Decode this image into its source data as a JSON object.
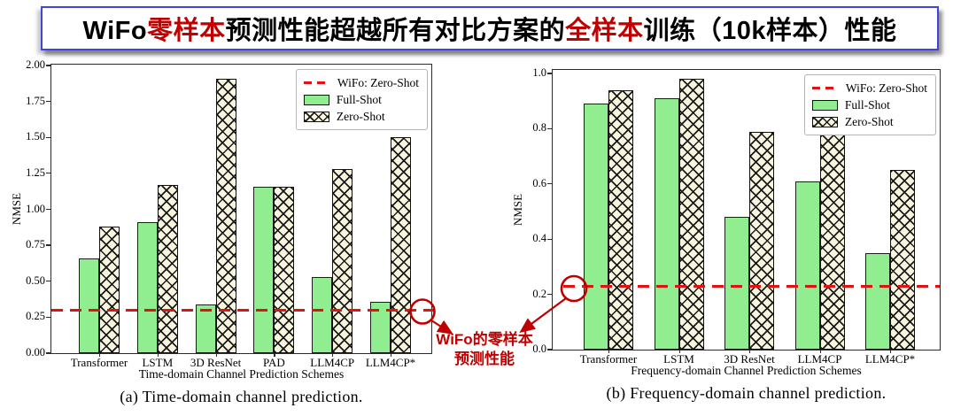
{
  "title": {
    "segments": [
      {
        "text": "WiFo",
        "red": false
      },
      {
        "text": "零样本",
        "red": true
      },
      {
        "text": "预测性能超越所有对比方案的",
        "red": false
      },
      {
        "text": "全样本",
        "red": true
      },
      {
        "text": "训练（10k样本）性能",
        "red": false
      }
    ]
  },
  "legend": {
    "wifo": "WiFo: Zero-Shot",
    "full": "Full-Shot",
    "zero": "Zero-Shot"
  },
  "annotation": {
    "line1": "WiFo的零样本",
    "line2": "预测性能"
  },
  "colors": {
    "full_shot": "#90ee90",
    "zero_shot_bg": "#f8f5df",
    "hatch": "#1a1a1a",
    "wifo_line": "#e01212",
    "annotation_red": "#c00000",
    "title_red": "#c00000",
    "title_border": "#4343d6"
  },
  "chart_data": [
    {
      "type": "bar",
      "caption": "(a) Time-domain channel prediction.",
      "xlabel": "Time-domain Channel Prediction Schemes",
      "ylabel": "NMSE",
      "ylim": [
        0,
        2.0
      ],
      "grid": false,
      "legend_position": "upper right",
      "yticks": [
        {
          "label": "0.00",
          "value": 0.0
        },
        {
          "label": "0.25",
          "value": 0.25
        },
        {
          "label": "0.50",
          "value": 0.5
        },
        {
          "label": "0.75",
          "value": 0.75
        },
        {
          "label": "1.00",
          "value": 1.0
        },
        {
          "label": "1.25",
          "value": 1.25
        },
        {
          "label": "1.50",
          "value": 1.5
        },
        {
          "label": "1.75",
          "value": 1.75
        },
        {
          "label": "2.00",
          "value": 2.0
        }
      ],
      "categories": [
        "Transformer",
        "LSTM",
        "3D ResNet",
        "PAD",
        "LLM4CP",
        "LLM4CP*"
      ],
      "series": [
        {
          "name": "Full-Shot",
          "values": [
            0.66,
            0.91,
            0.34,
            1.16,
            0.53,
            0.36
          ]
        },
        {
          "name": "Zero-Shot",
          "values": [
            0.88,
            1.17,
            1.91,
            1.16,
            1.28,
            1.5
          ]
        }
      ],
      "wifo_line": 0.3
    },
    {
      "type": "bar",
      "caption": "(b) Frequency-domain channel prediction.",
      "xlabel": "Frequency-domain Channel Prediction Schemes",
      "ylabel": "NMSE",
      "ylim": [
        0,
        1.0
      ],
      "grid": false,
      "legend_position": "upper right",
      "yticks": [
        {
          "label": "0.0",
          "value": 0.0
        },
        {
          "label": "0.2",
          "value": 0.2
        },
        {
          "label": "0.4",
          "value": 0.4
        },
        {
          "label": "0.6",
          "value": 0.6
        },
        {
          "label": "0.8",
          "value": 0.8
        },
        {
          "label": "1.0",
          "value": 1.0
        }
      ],
      "categories": [
        "Transformer",
        "LSTM",
        "3D ResNet",
        "LLM4CP",
        "LLM4CP*"
      ],
      "series": [
        {
          "name": "Full-Shot",
          "values": [
            0.89,
            0.91,
            0.48,
            0.61,
            0.35
          ]
        },
        {
          "name": "Zero-Shot",
          "values": [
            0.94,
            0.98,
            0.79,
            0.78,
            0.65
          ]
        }
      ],
      "wifo_line": 0.23
    }
  ]
}
